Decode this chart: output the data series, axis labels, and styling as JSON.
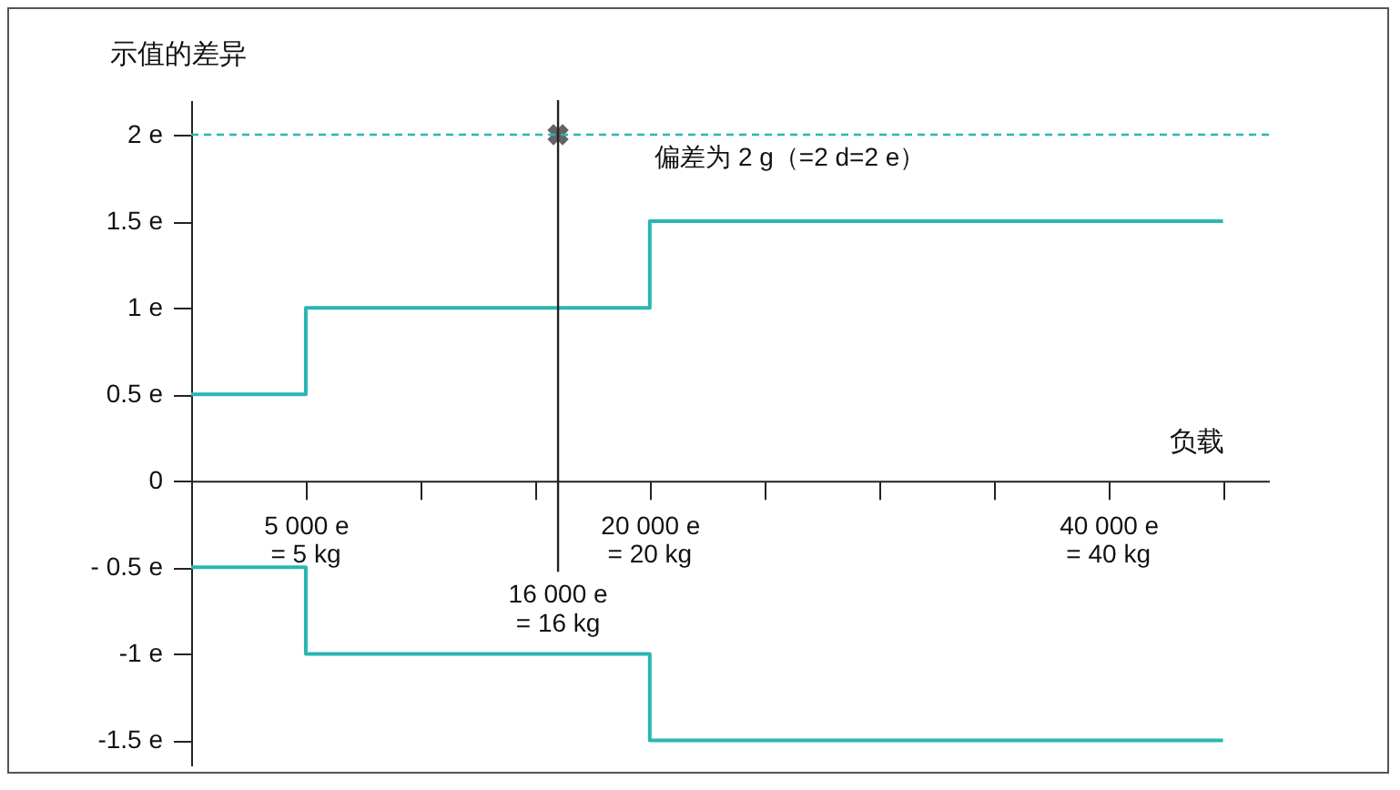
{
  "chart_data": {
    "type": "step",
    "xlabel": "负载",
    "ylabel": "示值的差异",
    "xlim": [
      0,
      47000
    ],
    "xticks": [
      {
        "value": 5000,
        "label": "5 000 e"
      },
      {
        "value": 10000,
        "label": null
      },
      {
        "value": 15000,
        "label": null
      },
      {
        "value": 20000,
        "label": "20 000 e"
      },
      {
        "value": 25000,
        "label": null
      },
      {
        "value": 30000,
        "label": null
      },
      {
        "value": 35000,
        "label": null
      },
      {
        "value": 40000,
        "label": "40 000 e"
      },
      {
        "value": 45000,
        "label": null
      }
    ],
    "annotations": [
      "= 5 kg",
      "= 20 kg",
      "= 40 kg"
    ],
    "ylim": [
      -1.65,
      2.2
    ],
    "yticks": [
      {
        "value": 2,
        "label": "2 e"
      },
      {
        "value": 1.5,
        "label": "1.5 e"
      },
      {
        "value": 1,
        "label": "1 e"
      },
      {
        "value": 0.5,
        "label": "0.5 e"
      },
      0,
      {
        "value": -0.5,
        "label": "- 0.5 e"
      },
      {
        "value": -1,
        "label": "-1 e"
      },
      {
        "value": -1.5,
        "label": "-1.5 e"
      }
    ],
    "series": [
      {
        "color": "#2bb5b5",
        "x": [
          0,
          5000,
          20000,
          45000
        ],
        "values": [
          0.5,
          1,
          1.5,
          1.5
        ]
      },
      {
        "color": "#2bb5b5",
        "x": [
          0,
          5000,
          20000,
          45000
        ],
        "values": [
          -0.5,
          -1,
          -1.5,
          -1.5
        ]
      },
      {
        "type": "scatter",
        "marker": "cross",
        "color": "#222222",
        "x": [
          16000
        ],
        "values": [
          2
        ]
      }
    ],
    "ref_lines": [
      {
        "axis": "y",
        "value": 2,
        "label": "偏差为 2 g（=2 d=2 e）",
        "color": "#2bb5b5",
        "line_style": "dashed"
      },
      {
        "axis": "x",
        "value": 16000,
        "label": "16 000 e\n= 16 kg",
        "color": "#222222",
        "line_style": "solid"
      }
    ]
  }
}
